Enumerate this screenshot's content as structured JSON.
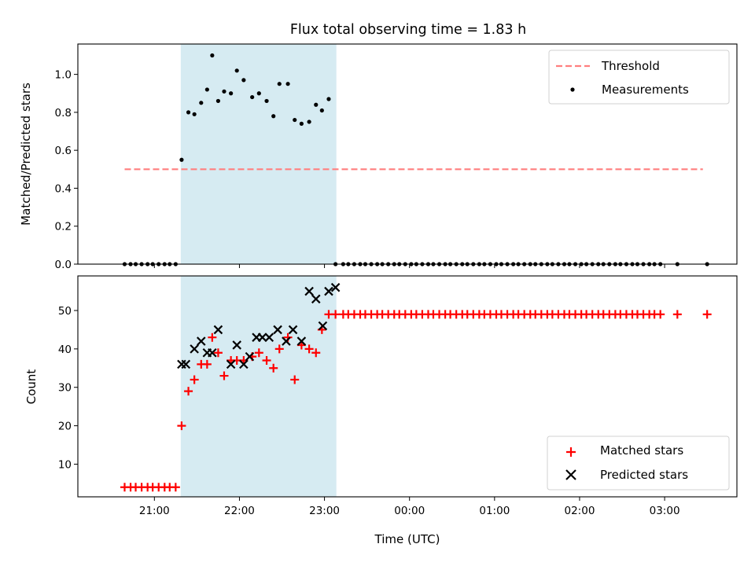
{
  "chart_data": {
    "title": "Flux total observing time = 1.83 h",
    "xlabel": "Time (UTC)",
    "x_ticks": [
      "21:00",
      "22:00",
      "23:00",
      "00:00",
      "01:00",
      "02:00",
      "03:00"
    ],
    "x_tick_hours": [
      21,
      22,
      23,
      24,
      25,
      26,
      27
    ],
    "xlim_hours": [
      20.1,
      27.85
    ],
    "highlight_span_hours": [
      21.31,
      23.14
    ],
    "colors": {
      "highlight": "#add8e6",
      "threshold": "#ff7f7f",
      "measurements": "#000000",
      "matched": "#ff0000",
      "predicted": "#000000"
    },
    "panels": [
      {
        "type": "scatter",
        "ylabel": "Matched/Predicted stars",
        "ylim": [
          0,
          1.16
        ],
        "y_ticks": [
          "0.0",
          "0.2",
          "0.4",
          "0.6",
          "0.8",
          "1.0"
        ],
        "y_tick_values": [
          0,
          0.2,
          0.4,
          0.6,
          0.8,
          1.0
        ],
        "legend_position": "top-right",
        "threshold": {
          "name": "Threshold",
          "value": 0.5,
          "x_range_hours": [
            20.65,
            27.45
          ]
        },
        "measurements": {
          "name": "Measurements",
          "x_hours": [
            20.65,
            20.72,
            20.78,
            20.85,
            20.92,
            20.98,
            21.05,
            21.12,
            21.18,
            21.25,
            21.32,
            21.4,
            21.47,
            21.55,
            21.62,
            21.68,
            21.75,
            21.82,
            21.9,
            21.97,
            22.05,
            22.15,
            22.23,
            22.32,
            22.4,
            22.47,
            22.57,
            22.65,
            22.73,
            22.82,
            22.9,
            22.97,
            23.05,
            23.13,
            23.22,
            23.28,
            23.35,
            23.42,
            23.48,
            23.55,
            23.62,
            23.68,
            23.75,
            23.82,
            23.88,
            23.95,
            24.02,
            24.08,
            24.15,
            24.22,
            24.28,
            24.35,
            24.42,
            24.48,
            24.55,
            24.62,
            24.68,
            24.75,
            24.82,
            24.88,
            24.95,
            25.02,
            25.08,
            25.15,
            25.22,
            25.28,
            25.35,
            25.42,
            25.48,
            25.55,
            25.62,
            25.68,
            25.75,
            25.82,
            25.88,
            25.95,
            26.02,
            26.08,
            26.15,
            26.22,
            26.28,
            26.35,
            26.42,
            26.48,
            26.55,
            26.62,
            26.68,
            26.75,
            26.82,
            26.88,
            26.95,
            27.15,
            27.5
          ],
          "y": [
            0,
            0,
            0,
            0,
            0,
            0,
            0,
            0,
            0,
            0,
            0.55,
            0.8,
            0.79,
            0.85,
            0.92,
            1.1,
            0.86,
            0.91,
            0.9,
            1.02,
            0.97,
            0.88,
            0.9,
            0.86,
            0.78,
            0.95,
            0.95,
            0.76,
            0.74,
            0.75,
            0.84,
            0.81,
            0.87,
            0,
            0,
            0,
            0,
            0,
            0,
            0,
            0,
            0,
            0,
            0,
            0,
            0,
            0,
            0,
            0,
            0,
            0,
            0,
            0,
            0,
            0,
            0,
            0,
            0,
            0,
            0,
            0,
            0,
            0,
            0,
            0,
            0,
            0,
            0,
            0,
            0,
            0,
            0,
            0,
            0,
            0,
            0,
            0,
            0,
            0,
            0,
            0,
            0,
            0,
            0,
            0,
            0,
            0,
            0,
            0,
            0,
            0,
            0,
            0
          ]
        }
      },
      {
        "type": "scatter",
        "ylabel": "Count",
        "ylim": [
          1.5,
          59
        ],
        "y_ticks": [
          "10",
          "20",
          "30",
          "40",
          "50"
        ],
        "y_tick_values": [
          10,
          20,
          30,
          40,
          50
        ],
        "legend_position": "bottom-right",
        "series": [
          {
            "name": "Matched stars",
            "marker": "+",
            "x_hours": [
              20.65,
              20.72,
              20.78,
              20.85,
              20.92,
              20.98,
              21.05,
              21.12,
              21.18,
              21.25,
              21.32,
              21.4,
              21.47,
              21.55,
              21.62,
              21.68,
              21.75,
              21.82,
              21.9,
              21.97,
              22.05,
              22.15,
              22.23,
              22.32,
              22.4,
              22.47,
              22.57,
              22.65,
              22.73,
              22.82,
              22.9,
              22.97,
              23.05,
              23.13,
              23.22,
              23.28,
              23.35,
              23.42,
              23.48,
              23.55,
              23.62,
              23.68,
              23.75,
              23.82,
              23.88,
              23.95,
              24.02,
              24.08,
              24.15,
              24.22,
              24.28,
              24.35,
              24.42,
              24.48,
              24.55,
              24.62,
              24.68,
              24.75,
              24.82,
              24.88,
              24.95,
              25.02,
              25.08,
              25.15,
              25.22,
              25.28,
              25.35,
              25.42,
              25.48,
              25.55,
              25.62,
              25.68,
              25.75,
              25.82,
              25.88,
              25.95,
              26.02,
              26.08,
              26.15,
              26.22,
              26.28,
              26.35,
              26.42,
              26.48,
              26.55,
              26.62,
              26.68,
              26.75,
              26.82,
              26.88,
              26.95,
              27.15,
              27.5
            ],
            "y": [
              4,
              4,
              4,
              4,
              4,
              4,
              4,
              4,
              4,
              4,
              20,
              29,
              32,
              36,
              36,
              43,
              39,
              33,
              37,
              37,
              37,
              38,
              39,
              37,
              35,
              40,
              43,
              32,
              41,
              40,
              39,
              45,
              49,
              49,
              49,
              49,
              49,
              49,
              49,
              49,
              49,
              49,
              49,
              49,
              49,
              49,
              49,
              49,
              49,
              49,
              49,
              49,
              49,
              49,
              49,
              49,
              49,
              49,
              49,
              49,
              49,
              49,
              49,
              49,
              49,
              49,
              49,
              49,
              49,
              49,
              49,
              49,
              49,
              49,
              49,
              49,
              49,
              49,
              49,
              49,
              49,
              49,
              49,
              49,
              49,
              49,
              49,
              49,
              49,
              49,
              49,
              49,
              49
            ]
          },
          {
            "name": "Predicted stars",
            "marker": "x",
            "x_hours": [
              21.32,
              21.37,
              21.47,
              21.55,
              21.62,
              21.68,
              21.75,
              21.9,
              21.97,
              22.05,
              22.12,
              22.2,
              22.27,
              22.35,
              22.45,
              22.55,
              22.63,
              22.73,
              22.82,
              22.9,
              22.98,
              23.05,
              23.13
            ],
            "y": [
              36,
              36,
              40,
              42,
              39,
              39,
              45,
              36,
              41,
              36,
              38,
              43,
              43,
              43,
              45,
              42,
              45,
              42,
              55,
              53,
              46,
              55,
              56
            ]
          }
        ]
      }
    ]
  }
}
